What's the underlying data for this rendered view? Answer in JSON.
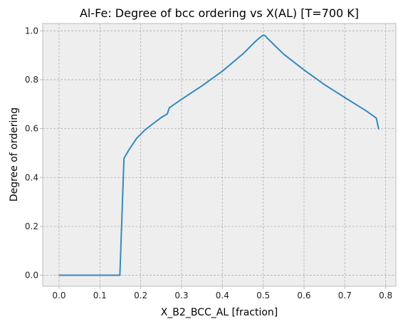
{
  "chart_data": {
    "type": "line",
    "title": "Al-Fe: Degree of bcc ordering vs X(AL) [T=700 K]",
    "xlabel": "X_B2_BCC_AL [fraction]",
    "ylabel": "Degree of ordering",
    "xlim": [
      -0.04,
      0.825
    ],
    "ylim": [
      -0.045,
      1.03
    ],
    "xticks": [
      0.0,
      0.1,
      0.2,
      0.3,
      0.4,
      0.5,
      0.6,
      0.7,
      0.8
    ],
    "xtick_labels": [
      "0.0",
      "0.1",
      "0.2",
      "0.3",
      "0.4",
      "0.5",
      "0.6",
      "0.7",
      "0.8"
    ],
    "yticks": [
      0.0,
      0.2,
      0.4,
      0.6,
      0.8,
      1.0
    ],
    "ytick_labels": [
      "0.0",
      "0.2",
      "0.4",
      "0.6",
      "0.8",
      "1.0"
    ],
    "grid": true,
    "legend": "none",
    "colors": {
      "line": "#348abd",
      "background": "#eeeeee",
      "grid": "#b0b0b0"
    },
    "series": [
      {
        "x": [
          0.0,
          0.05,
          0.1,
          0.149,
          0.159,
          0.17,
          0.19,
          0.21,
          0.23,
          0.25,
          0.265,
          0.27,
          0.3,
          0.35,
          0.4,
          0.45,
          0.48,
          0.49,
          0.5,
          0.505,
          0.51,
          0.55,
          0.6,
          0.65,
          0.7,
          0.75,
          0.777,
          0.783
        ],
        "y": [
          0.0,
          0.0,
          0.0,
          0.0,
          0.478,
          0.51,
          0.56,
          0.594,
          0.62,
          0.645,
          0.66,
          0.685,
          0.72,
          0.775,
          0.835,
          0.905,
          0.955,
          0.97,
          0.982,
          0.98,
          0.97,
          0.905,
          0.84,
          0.78,
          0.727,
          0.675,
          0.643,
          0.597
        ]
      }
    ]
  }
}
